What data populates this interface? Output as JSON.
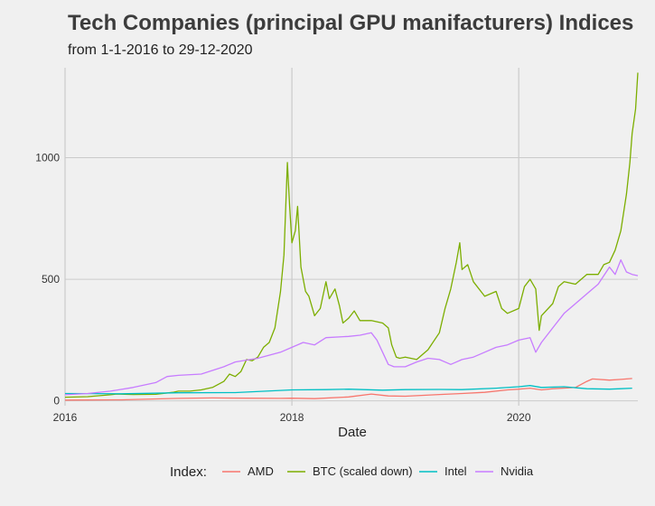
{
  "chart_data": {
    "type": "line",
    "title": "Tech Companies (principal GPU manifacturers) Indices",
    "subtitle": "from 1-1-2016 to 29-12-2020",
    "xlabel": "Date",
    "ylabel": "",
    "xlim": [
      2016.0,
      2021.05
    ],
    "ylim": [
      -20,
      1370
    ],
    "x_ticks": [
      {
        "value": 2016,
        "label": "2016"
      },
      {
        "value": 2018,
        "label": "2018"
      },
      {
        "value": 2020,
        "label": "2020"
      }
    ],
    "y_ticks": [
      {
        "value": 0,
        "label": "0"
      },
      {
        "value": 500,
        "label": "500"
      },
      {
        "value": 1000,
        "label": "1000"
      }
    ],
    "grid": true,
    "legend_title": "Index:",
    "legend_position": "bottom",
    "series": [
      {
        "name": "AMD",
        "color": "#f8766d",
        "points": [
          [
            2016.0,
            3
          ],
          [
            2016.5,
            4
          ],
          [
            2017.0,
            10
          ],
          [
            2017.3,
            12
          ],
          [
            2017.6,
            11
          ],
          [
            2017.9,
            10
          ],
          [
            2018.0,
            11
          ],
          [
            2018.2,
            9
          ],
          [
            2018.5,
            16
          ],
          [
            2018.7,
            28
          ],
          [
            2018.85,
            20
          ],
          [
            2019.0,
            19
          ],
          [
            2019.3,
            26
          ],
          [
            2019.5,
            30
          ],
          [
            2019.7,
            35
          ],
          [
            2019.9,
            45
          ],
          [
            2020.0,
            48
          ],
          [
            2020.1,
            52
          ],
          [
            2020.2,
            45
          ],
          [
            2020.3,
            50
          ],
          [
            2020.5,
            55
          ],
          [
            2020.6,
            80
          ],
          [
            2020.65,
            90
          ],
          [
            2020.8,
            85
          ],
          [
            2020.9,
            88
          ],
          [
            2021.0,
            92
          ]
        ]
      },
      {
        "name": "BTC (scaled down)",
        "color": "#7cae00",
        "points": [
          [
            2016.0,
            15
          ],
          [
            2016.2,
            17
          ],
          [
            2016.4,
            25
          ],
          [
            2016.45,
            28
          ],
          [
            2016.6,
            26
          ],
          [
            2016.8,
            27
          ],
          [
            2016.95,
            35
          ],
          [
            2017.0,
            40
          ],
          [
            2017.1,
            40
          ],
          [
            2017.2,
            45
          ],
          [
            2017.3,
            55
          ],
          [
            2017.4,
            80
          ],
          [
            2017.45,
            110
          ],
          [
            2017.5,
            100
          ],
          [
            2017.55,
            120
          ],
          [
            2017.6,
            170
          ],
          [
            2017.65,
            165
          ],
          [
            2017.7,
            180
          ],
          [
            2017.75,
            220
          ],
          [
            2017.8,
            240
          ],
          [
            2017.85,
            300
          ],
          [
            2017.9,
            450
          ],
          [
            2017.93,
            600
          ],
          [
            2017.96,
            980
          ],
          [
            2017.98,
            800
          ],
          [
            2018.0,
            650
          ],
          [
            2018.03,
            700
          ],
          [
            2018.05,
            800
          ],
          [
            2018.08,
            550
          ],
          [
            2018.12,
            450
          ],
          [
            2018.15,
            430
          ],
          [
            2018.2,
            350
          ],
          [
            2018.25,
            380
          ],
          [
            2018.3,
            490
          ],
          [
            2018.33,
            420
          ],
          [
            2018.38,
            460
          ],
          [
            2018.42,
            390
          ],
          [
            2018.45,
            320
          ],
          [
            2018.5,
            340
          ],
          [
            2018.55,
            370
          ],
          [
            2018.6,
            330
          ],
          [
            2018.7,
            330
          ],
          [
            2018.8,
            320
          ],
          [
            2018.85,
            300
          ],
          [
            2018.88,
            230
          ],
          [
            2018.92,
            180
          ],
          [
            2018.95,
            175
          ],
          [
            2019.0,
            180
          ],
          [
            2019.1,
            170
          ],
          [
            2019.2,
            210
          ],
          [
            2019.3,
            280
          ],
          [
            2019.35,
            380
          ],
          [
            2019.4,
            460
          ],
          [
            2019.45,
            570
          ],
          [
            2019.48,
            650
          ],
          [
            2019.5,
            540
          ],
          [
            2019.55,
            560
          ],
          [
            2019.6,
            490
          ],
          [
            2019.7,
            430
          ],
          [
            2019.8,
            450
          ],
          [
            2019.85,
            380
          ],
          [
            2019.9,
            360
          ],
          [
            2020.0,
            380
          ],
          [
            2020.05,
            470
          ],
          [
            2020.1,
            500
          ],
          [
            2020.15,
            460
          ],
          [
            2020.18,
            290
          ],
          [
            2020.2,
            350
          ],
          [
            2020.3,
            400
          ],
          [
            2020.35,
            470
          ],
          [
            2020.4,
            490
          ],
          [
            2020.5,
            480
          ],
          [
            2020.6,
            520
          ],
          [
            2020.7,
            520
          ],
          [
            2020.75,
            560
          ],
          [
            2020.8,
            570
          ],
          [
            2020.85,
            620
          ],
          [
            2020.9,
            700
          ],
          [
            2020.95,
            850
          ],
          [
            2020.98,
            980
          ],
          [
            2021.0,
            1100
          ],
          [
            2021.03,
            1200
          ],
          [
            2021.05,
            1350
          ]
        ]
      },
      {
        "name": "Intel",
        "color": "#00bfc4",
        "points": [
          [
            2016.0,
            30
          ],
          [
            2016.5,
            29
          ],
          [
            2017.0,
            33
          ],
          [
            2017.5,
            34
          ],
          [
            2018.0,
            45
          ],
          [
            2018.3,
            46
          ],
          [
            2018.5,
            48
          ],
          [
            2018.8,
            44
          ],
          [
            2019.0,
            46
          ],
          [
            2019.3,
            47
          ],
          [
            2019.5,
            46
          ],
          [
            2019.8,
            52
          ],
          [
            2020.0,
            58
          ],
          [
            2020.1,
            63
          ],
          [
            2020.2,
            55
          ],
          [
            2020.4,
            58
          ],
          [
            2020.6,
            50
          ],
          [
            2020.8,
            48
          ],
          [
            2020.9,
            50
          ],
          [
            2021.0,
            52
          ]
        ]
      },
      {
        "name": "Nvidia",
        "color": "#c77cff",
        "points": [
          [
            2016.0,
            25
          ],
          [
            2016.2,
            30
          ],
          [
            2016.4,
            40
          ],
          [
            2016.6,
            55
          ],
          [
            2016.8,
            75
          ],
          [
            2016.9,
            100
          ],
          [
            2017.0,
            105
          ],
          [
            2017.2,
            110
          ],
          [
            2017.4,
            140
          ],
          [
            2017.5,
            160
          ],
          [
            2017.7,
            175
          ],
          [
            2017.9,
            200
          ],
          [
            2018.0,
            220
          ],
          [
            2018.1,
            240
          ],
          [
            2018.2,
            230
          ],
          [
            2018.3,
            260
          ],
          [
            2018.5,
            265
          ],
          [
            2018.6,
            270
          ],
          [
            2018.7,
            280
          ],
          [
            2018.75,
            250
          ],
          [
            2018.8,
            200
          ],
          [
            2018.85,
            150
          ],
          [
            2018.9,
            140
          ],
          [
            2019.0,
            140
          ],
          [
            2019.1,
            160
          ],
          [
            2019.2,
            175
          ],
          [
            2019.3,
            170
          ],
          [
            2019.4,
            150
          ],
          [
            2019.5,
            170
          ],
          [
            2019.6,
            180
          ],
          [
            2019.7,
            200
          ],
          [
            2019.8,
            220
          ],
          [
            2019.9,
            230
          ],
          [
            2020.0,
            250
          ],
          [
            2020.1,
            260
          ],
          [
            2020.15,
            200
          ],
          [
            2020.2,
            240
          ],
          [
            2020.3,
            300
          ],
          [
            2020.4,
            360
          ],
          [
            2020.5,
            400
          ],
          [
            2020.6,
            440
          ],
          [
            2020.7,
            480
          ],
          [
            2020.8,
            550
          ],
          [
            2020.85,
            520
          ],
          [
            2020.9,
            580
          ],
          [
            2020.95,
            530
          ],
          [
            2021.0,
            520
          ],
          [
            2021.05,
            515
          ]
        ]
      }
    ]
  }
}
